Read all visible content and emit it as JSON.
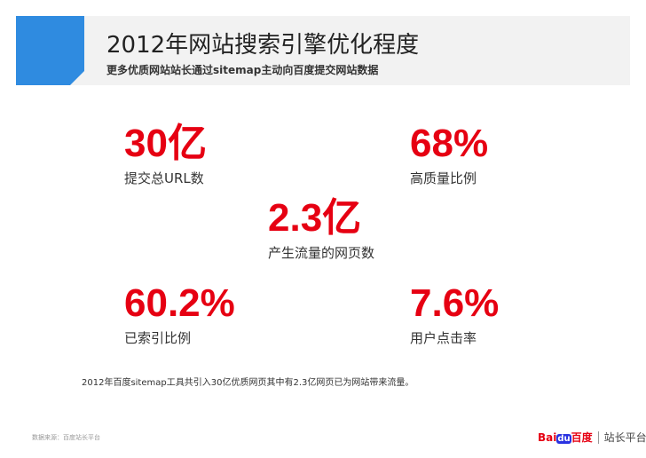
{
  "header": {
    "title": "2012年网站搜索引擎优化程度",
    "subtitle": "更多优质网站站长通过sitemap主动向百度提交网站数据"
  },
  "stats": [
    {
      "value": "30亿",
      "label": "提交总URL数"
    },
    {
      "value": "68%",
      "label": "高质量比例"
    },
    {
      "value": "2.3亿",
      "label": "产生流量的网页数"
    },
    {
      "value": "60.2%",
      "label": "已索引比例"
    },
    {
      "value": "7.6%",
      "label": "用户点击率"
    }
  ],
  "note": "2012年百度sitemap工具共引入30亿优质网页其中有2.3亿网页已为网站带来流量。",
  "footer": {
    "source": "数据来源：百度站长平台",
    "logo": {
      "brand": "Bai",
      "mark": "du",
      "name": "百度",
      "platform": "站长平台"
    }
  }
}
